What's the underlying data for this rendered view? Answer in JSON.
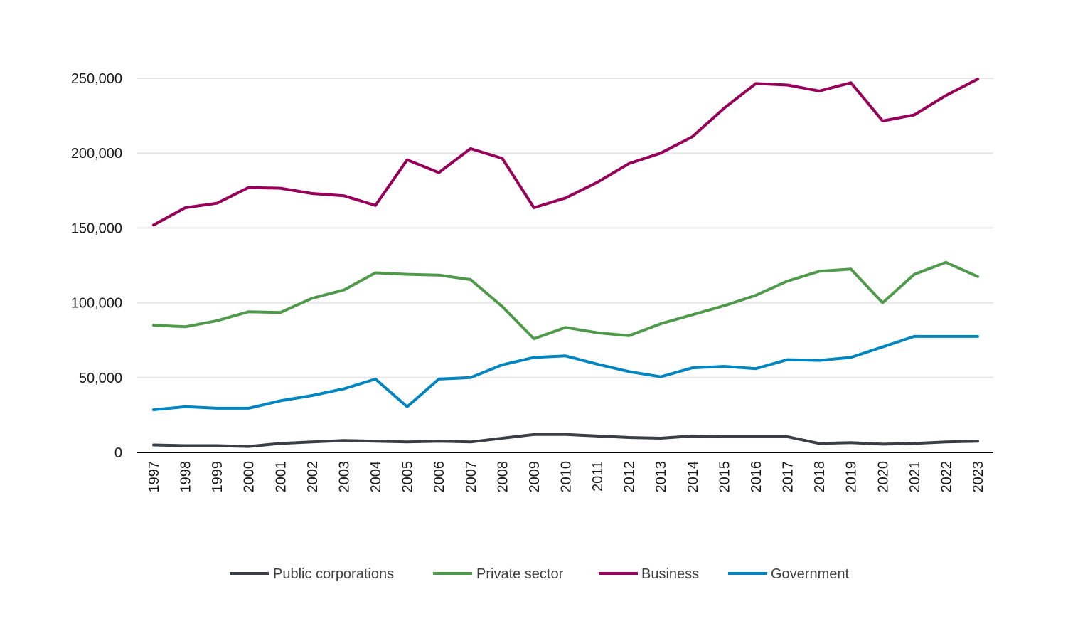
{
  "chart_data": {
    "type": "line",
    "title": "",
    "xlabel": "",
    "ylabel": "",
    "ylim": [
      0,
      250000
    ],
    "yticks": [
      0,
      50000,
      100000,
      150000,
      200000,
      250000
    ],
    "ytick_labels": [
      "0",
      "50,000",
      "100,000",
      "150,000",
      "200,000",
      "250,000"
    ],
    "grid": true,
    "legend_position": "bottom-center",
    "categories": [
      "1997",
      "1998",
      "1999",
      "2000",
      "2001",
      "2002",
      "2003",
      "2004",
      "2005",
      "2006",
      "2007",
      "2008",
      "2009",
      "2010",
      "2011",
      "2012",
      "2013",
      "2014",
      "2015",
      "2016",
      "2017",
      "2018",
      "2019",
      "2020",
      "2021",
      "2022",
      "2023"
    ],
    "series": [
      {
        "name": "Public corporations",
        "color": "#3a3f46",
        "values": [
          5000,
          4500,
          4500,
          4000,
          6000,
          7000,
          8000,
          7500,
          7000,
          7500,
          7000,
          9500,
          12000,
          12000,
          11000,
          10000,
          9500,
          11000,
          10500,
          10500,
          10500,
          6000,
          6500,
          5500,
          6000,
          7000,
          7500
        ]
      },
      {
        "name": "Private sector",
        "color": "#4f9a4a",
        "values": [
          85000,
          84000,
          88000,
          94000,
          93500,
          103000,
          108500,
          120000,
          119000,
          118500,
          115500,
          97500,
          76000,
          83500,
          80000,
          78000,
          86000,
          92000,
          98000,
          105000,
          114500,
          121000,
          122500,
          100000,
          119000,
          127000,
          117500
        ]
      },
      {
        "name": "Business",
        "color": "#960058",
        "values": [
          152000,
          163500,
          166500,
          177000,
          176500,
          173000,
          171500,
          165000,
          195500,
          187000,
          203000,
          196500,
          163500,
          170000,
          180500,
          193000,
          200000,
          211000,
          230000,
          246500,
          245500,
          241500,
          247000,
          221500,
          225500,
          238500,
          249500
        ]
      },
      {
        "name": "Government",
        "color": "#0085c0",
        "values": [
          28500,
          30500,
          29500,
          29500,
          34500,
          38000,
          42500,
          49000,
          30500,
          49000,
          50000,
          58500,
          63500,
          64500,
          59000,
          54000,
          50500,
          56500,
          57500,
          56000,
          62000,
          61500,
          63500,
          70500,
          77500,
          77500,
          77500
        ]
      }
    ]
  }
}
